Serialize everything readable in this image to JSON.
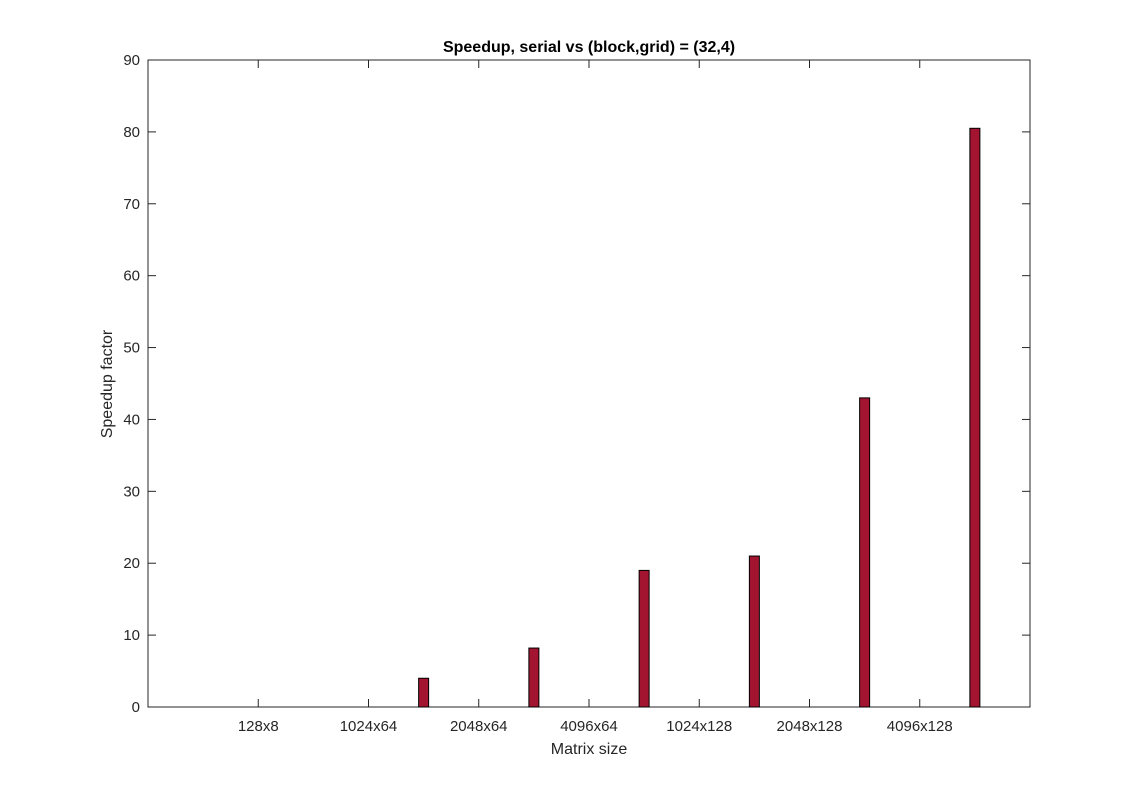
{
  "chart_data": {
    "type": "bar",
    "title": "Speedup, serial vs (block,grid) = (32,4)",
    "xlabel": "Matrix size",
    "ylabel": "Speedup factor",
    "categories": [
      "128x8",
      "1024x64",
      "2048x64",
      "4096x64",
      "1024x128",
      "2048x128",
      "4096x128"
    ],
    "series": [
      {
        "values": [
          0,
          4,
          8.2,
          19,
          21,
          43,
          80.5
        ]
      }
    ],
    "bar_offset": 1.5,
    "xlim": [
      0,
      8
    ],
    "ylim": [
      0,
      90
    ],
    "yticks": [
      0,
      10,
      20,
      30,
      40,
      50,
      60,
      70,
      80,
      90
    ],
    "grid": false,
    "legend": "none",
    "colors": {
      "bar_fill": "#A2142F",
      "bar_edge": "#000000",
      "axis": "#262626",
      "background": "#ffffff"
    }
  }
}
